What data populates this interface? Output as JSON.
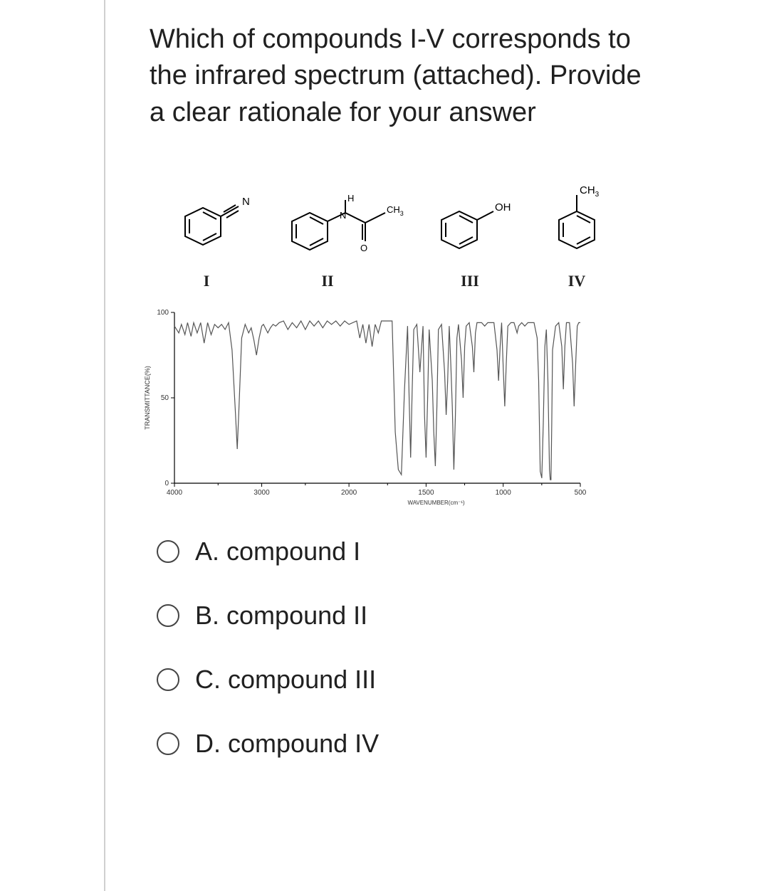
{
  "question_text": "Which of compounds I-V corresponds to the infrared spectrum (attached). Provide a clear rationale for your answer",
  "compounds": {
    "I": {
      "label": "I",
      "substituent_label": "N"
    },
    "II": {
      "label": "II",
      "NH_label": "H",
      "N_label": "N",
      "O_label": "O",
      "CH3_label": "CH",
      "CH3_sub": "3"
    },
    "III": {
      "label": "III",
      "sub_label": "OH"
    },
    "IV": {
      "label": "IV",
      "sub_label_main": "CH",
      "sub_label_sub": "3"
    }
  },
  "chart": {
    "type": "line",
    "xlabel": "WAVENUMBER(cm⁻¹)",
    "ylabel": "TRANSMITTANCE(%)",
    "x_ticks": [
      "4000",
      "3000",
      "2000",
      "1500",
      "1000",
      "500"
    ],
    "y_ticks": [
      "0",
      "50",
      "100"
    ],
    "xlim": [
      4000,
      500
    ],
    "ylim": [
      0,
      100
    ],
    "line_color": "#555555",
    "axis_color": "#000000",
    "background_color": "#ffffff",
    "line_width": 1.2,
    "trace_points": [
      [
        4000,
        92
      ],
      [
        3950,
        88
      ],
      [
        3920,
        93
      ],
      [
        3880,
        87
      ],
      [
        3850,
        94
      ],
      [
        3810,
        86
      ],
      [
        3780,
        94
      ],
      [
        3740,
        88
      ],
      [
        3700,
        94
      ],
      [
        3660,
        82
      ],
      [
        3620,
        94
      ],
      [
        3580,
        87
      ],
      [
        3540,
        93
      ],
      [
        3500,
        91
      ],
      [
        3460,
        93
      ],
      [
        3420,
        90
      ],
      [
        3380,
        94
      ],
      [
        3340,
        78
      ],
      [
        3300,
        40
      ],
      [
        3280,
        20
      ],
      [
        3260,
        45
      ],
      [
        3230,
        85
      ],
      [
        3190,
        93
      ],
      [
        3150,
        88
      ],
      [
        3120,
        91
      ],
      [
        3090,
        84
      ],
      [
        3060,
        75
      ],
      [
        3030,
        85
      ],
      [
        3000,
        92
      ],
      [
        2980,
        93
      ],
      [
        2950,
        90
      ],
      [
        2930,
        88
      ],
      [
        2900,
        91
      ],
      [
        2870,
        93
      ],
      [
        2840,
        92
      ],
      [
        2800,
        94
      ],
      [
        2750,
        95
      ],
      [
        2700,
        90
      ],
      [
        2650,
        94
      ],
      [
        2600,
        91
      ],
      [
        2550,
        95
      ],
      [
        2500,
        90
      ],
      [
        2450,
        95
      ],
      [
        2400,
        92
      ],
      [
        2350,
        95
      ],
      [
        2300,
        91
      ],
      [
        2250,
        95
      ],
      [
        2200,
        93
      ],
      [
        2150,
        95
      ],
      [
        2100,
        92
      ],
      [
        2050,
        95
      ],
      [
        2000,
        93
      ],
      [
        1950,
        95
      ],
      [
        1930,
        85
      ],
      [
        1910,
        93
      ],
      [
        1890,
        82
      ],
      [
        1870,
        93
      ],
      [
        1850,
        80
      ],
      [
        1830,
        93
      ],
      [
        1810,
        88
      ],
      [
        1790,
        95
      ],
      [
        1720,
        95
      ],
      [
        1700,
        30
      ],
      [
        1680,
        8
      ],
      [
        1660,
        5
      ],
      [
        1640,
        55
      ],
      [
        1620,
        92
      ],
      [
        1610,
        50
      ],
      [
        1600,
        15
      ],
      [
        1590,
        55
      ],
      [
        1580,
        90
      ],
      [
        1560,
        93
      ],
      [
        1540,
        65
      ],
      [
        1520,
        92
      ],
      [
        1510,
        40
      ],
      [
        1500,
        15
      ],
      [
        1490,
        50
      ],
      [
        1480,
        90
      ],
      [
        1460,
        60
      ],
      [
        1450,
        30
      ],
      [
        1440,
        10
      ],
      [
        1430,
        45
      ],
      [
        1420,
        90
      ],
      [
        1400,
        93
      ],
      [
        1380,
        65
      ],
      [
        1370,
        40
      ],
      [
        1360,
        60
      ],
      [
        1350,
        92
      ],
      [
        1340,
        70
      ],
      [
        1330,
        45
      ],
      [
        1320,
        8
      ],
      [
        1310,
        40
      ],
      [
        1300,
        85
      ],
      [
        1290,
        93
      ],
      [
        1270,
        72
      ],
      [
        1260,
        50
      ],
      [
        1250,
        80
      ],
      [
        1240,
        92
      ],
      [
        1220,
        94
      ],
      [
        1200,
        80
      ],
      [
        1190,
        65
      ],
      [
        1180,
        88
      ],
      [
        1170,
        94
      ],
      [
        1140,
        94
      ],
      [
        1120,
        92
      ],
      [
        1100,
        94
      ],
      [
        1060,
        94
      ],
      [
        1040,
        78
      ],
      [
        1030,
        60
      ],
      [
        1020,
        80
      ],
      [
        1010,
        94
      ],
      [
        1000,
        68
      ],
      [
        990,
        45
      ],
      [
        980,
        70
      ],
      [
        970,
        92
      ],
      [
        950,
        94
      ],
      [
        930,
        94
      ],
      [
        910,
        88
      ],
      [
        900,
        92
      ],
      [
        880,
        94
      ],
      [
        860,
        92
      ],
      [
        840,
        94
      ],
      [
        820,
        94
      ],
      [
        800,
        94
      ],
      [
        780,
        85
      ],
      [
        770,
        60
      ],
      [
        760,
        7
      ],
      [
        750,
        3
      ],
      [
        740,
        35
      ],
      [
        730,
        80
      ],
      [
        720,
        90
      ],
      [
        710,
        60
      ],
      [
        700,
        8
      ],
      [
        695,
        2
      ],
      [
        690,
        2
      ],
      [
        685,
        35
      ],
      [
        680,
        78
      ],
      [
        660,
        92
      ],
      [
        640,
        94
      ],
      [
        620,
        80
      ],
      [
        610,
        55
      ],
      [
        600,
        80
      ],
      [
        590,
        94
      ],
      [
        570,
        94
      ],
      [
        550,
        70
      ],
      [
        540,
        45
      ],
      [
        530,
        70
      ],
      [
        520,
        92
      ],
      [
        510,
        94
      ],
      [
        500,
        94
      ]
    ]
  },
  "options": [
    {
      "letter": "A.",
      "text": "compound I"
    },
    {
      "letter": "B.",
      "text": "compound II"
    },
    {
      "letter": "C.",
      "text": "compound III"
    },
    {
      "letter": "D.",
      "text": "compound IV"
    }
  ]
}
